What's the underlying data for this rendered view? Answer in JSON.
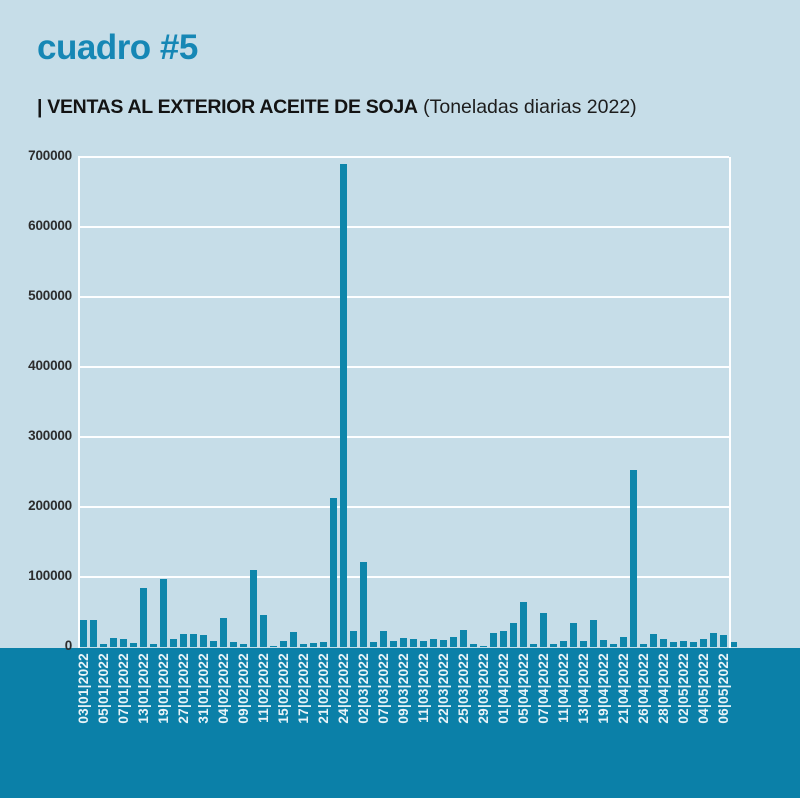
{
  "header": {
    "kicker": "cuadro #5",
    "title": "| VENTAS AL EXTERIOR ACEITE DE SOJA",
    "subtitle": " (Toneladas diarias 2022)"
  },
  "colors": {
    "background": "#c6dde8",
    "bar": "#0e86ab",
    "band": "#0b80a8",
    "kicker": "#1687b5",
    "gridline": "#ffffff",
    "x_label_text": "#e9f4f8"
  },
  "chart_data": {
    "type": "bar",
    "title": "VENTAS AL EXTERIOR ACEITE DE SOJA",
    "ylabel": "",
    "xlabel": "",
    "unit": "Toneladas diarias 2022",
    "ylim": [
      0,
      700000
    ],
    "ytick_interval": 100000,
    "yticks": [
      "0",
      "100000",
      "200000",
      "300000",
      "400000",
      "500000",
      "600000",
      "700000"
    ],
    "grid": true,
    "legend_position": "none",
    "categories": [
      "03|01|2022",
      "",
      "05|01|2022",
      "",
      "07|01|2022",
      "",
      "13|01|2022",
      "",
      "19|01|2022",
      "",
      "27|01|2022",
      "",
      "31|01|2022",
      "",
      "04|02|2022",
      "",
      "09|02|2022",
      "",
      "11|02|2022",
      "",
      "15|02|2022",
      "",
      "17|02|2022",
      "",
      "21|02|2022",
      "",
      "24|02|2022",
      "",
      "02|03|2022",
      "",
      "07|03|2022",
      "",
      "09|03|2022",
      "",
      "11|03|2022",
      "",
      "22|03|2022",
      "",
      "25|03|2022",
      "",
      "29|03|2022",
      "",
      "01|04|2022",
      "",
      "05|04|2022",
      "",
      "07|04|2022",
      "",
      "11|04|2022",
      "",
      "13|04|2022",
      "",
      "19|04|2022",
      "",
      "21|04|2022",
      "",
      "26|04|2022",
      "",
      "28|04|2022",
      "",
      "02|05|2022",
      "",
      "04|05|2022",
      "",
      "06|05|2022",
      ""
    ],
    "values": [
      39000,
      39000,
      5000,
      13000,
      11000,
      6000,
      84000,
      4000,
      97000,
      11000,
      19000,
      19000,
      17000,
      8000,
      41000,
      7000,
      4000,
      110000,
      46000,
      2000,
      9000,
      22000,
      4000,
      6000,
      7000,
      213000,
      690000,
      23000,
      121000,
      7000,
      23000,
      9000,
      13000,
      12000,
      8000,
      12000,
      10000,
      14000,
      24000,
      4000,
      2000,
      20000,
      23000,
      35000,
      65000,
      4000,
      48000,
      5000,
      9000,
      35000,
      9000,
      38000,
      10000,
      5000,
      15000,
      253000,
      5000,
      19000,
      11000,
      7000,
      9000,
      7000,
      11000,
      20000,
      17000,
      7000
    ]
  }
}
